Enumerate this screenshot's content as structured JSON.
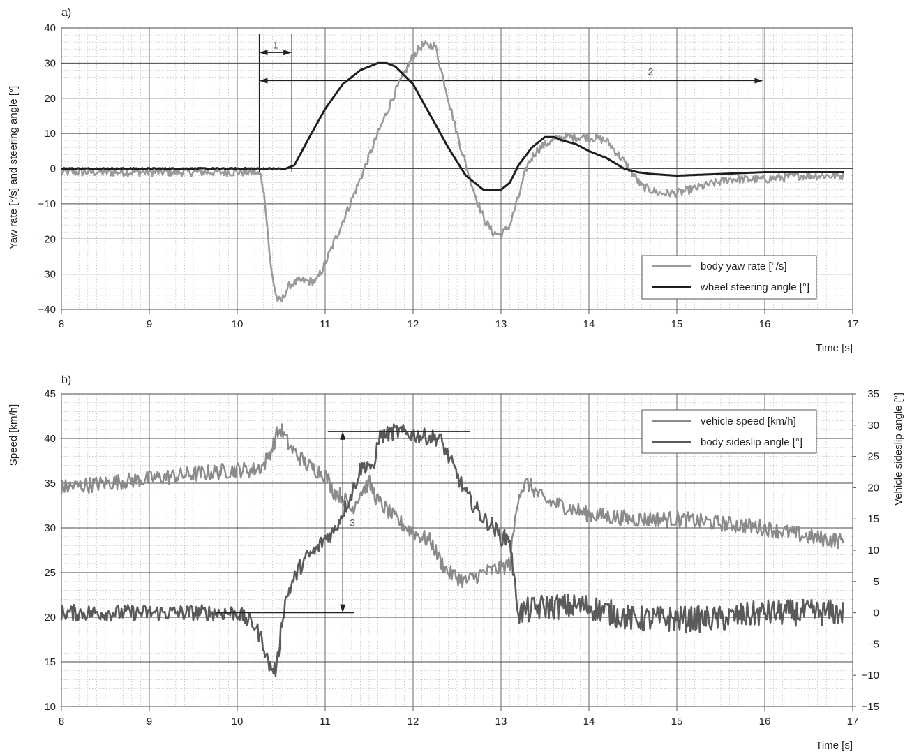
{
  "chart_data": [
    {
      "type": "line",
      "panel_label": "a)",
      "ylabel": "Yaw rate [°/s] and steering angle [°]",
      "xlabel": "Time [s]",
      "xlim": [
        8,
        17
      ],
      "ylim": [
        -40,
        40
      ],
      "x_ticks": [
        "8",
        "9",
        "10",
        "11",
        "12",
        "13",
        "14",
        "15",
        "16",
        "17"
      ],
      "y_ticks": [
        "40",
        "30",
        "20",
        "10",
        "0",
        "−10",
        "−20",
        "−30",
        "−40"
      ],
      "grid": true,
      "legend_position": "lower-right",
      "colors": {
        "body_yaw_rate": "#9a9a9a",
        "wheel_steering_angle": "#1e1e1e"
      },
      "series": [
        {
          "name": "body yaw rate [°/s]",
          "x": [
            8.0,
            8.5,
            9.0,
            9.5,
            10.0,
            10.2,
            10.27,
            10.32,
            10.38,
            10.45,
            10.5,
            10.55,
            10.6,
            10.7,
            10.8,
            10.9,
            11.0,
            11.2,
            11.4,
            11.6,
            11.8,
            12.0,
            12.1,
            12.2,
            12.25,
            12.3,
            12.4,
            12.5,
            12.6,
            12.7,
            12.8,
            12.9,
            13.0,
            13.1,
            13.2,
            13.3,
            13.4,
            13.5,
            13.6,
            13.7,
            13.8,
            14.0,
            14.2,
            14.4,
            14.6,
            14.8,
            15.0,
            15.3,
            15.6,
            16.0,
            16.4,
            16.9
          ],
          "values": [
            -1,
            -1,
            -1,
            -1,
            -1,
            -1,
            -2,
            -10,
            -28,
            -37,
            -38,
            -35,
            -33,
            -32,
            -32,
            -32,
            -27,
            -15,
            -3,
            10,
            22,
            32,
            35,
            35,
            35,
            30,
            20,
            10,
            1,
            -7,
            -14,
            -18,
            -19,
            -16,
            -8,
            1,
            5,
            7,
            8,
            9,
            9,
            9,
            8,
            2,
            -5,
            -7,
            -7,
            -5,
            -3,
            -3,
            -2,
            -2
          ]
        },
        {
          "name": "wheel steering angle [°]",
          "x": [
            8.0,
            9.0,
            10.0,
            10.3,
            10.55,
            10.65,
            10.8,
            11.0,
            11.2,
            11.4,
            11.6,
            11.7,
            11.8,
            12.0,
            12.2,
            12.4,
            12.6,
            12.8,
            12.9,
            13.0,
            13.1,
            13.2,
            13.35,
            13.5,
            13.6,
            13.7,
            13.85,
            14.0,
            14.2,
            14.4,
            14.55,
            14.7,
            15.0,
            15.5,
            16.0,
            16.9
          ],
          "values": [
            0,
            0,
            0,
            0,
            0,
            1,
            8,
            17,
            24,
            28,
            30,
            30,
            29,
            24,
            15,
            6,
            -2,
            -6,
            -6,
            -6,
            -4,
            1,
            6,
            9,
            9,
            8,
            7,
            5,
            3,
            0,
            -1,
            -1.5,
            -2,
            -1.5,
            -1,
            -1
          ]
        }
      ],
      "annotations": [
        {
          "label": "1",
          "x_start": 10.25,
          "x_end": 10.62,
          "y": 33
        },
        {
          "label": "2",
          "x_start": 10.25,
          "x_end": 15.98,
          "y": 25
        }
      ]
    },
    {
      "type": "line",
      "panel_label": "b)",
      "ylabel": "Speed [km/h]",
      "ylabel_right": "Vehicle sideslip angle [°]",
      "xlabel": "Time [s]",
      "xlim": [
        8,
        17
      ],
      "ylim": [
        10,
        45
      ],
      "ylim_right": [
        -15,
        35
      ],
      "x_ticks": [
        "8",
        "9",
        "10",
        "11",
        "12",
        "13",
        "14",
        "15",
        "16",
        "17"
      ],
      "y_ticks": [
        "45",
        "40",
        "35",
        "30",
        "25",
        "20",
        "15",
        "10"
      ],
      "y_ticks_right": [
        "35",
        "30",
        "25",
        "20",
        "15",
        "10",
        "5",
        "0",
        "−5",
        "−10",
        "−15"
      ],
      "grid": true,
      "legend_position": "top-right",
      "colors": {
        "vehicle_speed": "#8a8a8a",
        "body_sideslip_angle": "#5a5a5a"
      },
      "series": [
        {
          "name": "vehicle speed [km/h]",
          "axis": "left",
          "x": [
            8.0,
            8.5,
            9.0,
            9.5,
            10.0,
            10.2,
            10.3,
            10.4,
            10.45,
            10.5,
            10.6,
            10.8,
            11.0,
            11.1,
            11.2,
            11.3,
            11.4,
            11.5,
            11.6,
            11.7,
            11.8,
            12.0,
            12.2,
            12.3,
            12.4,
            12.6,
            12.8,
            13.0,
            13.1,
            13.2,
            13.3,
            13.5,
            13.7,
            14.0,
            14.5,
            15.0,
            15.5,
            16.0,
            16.5,
            16.9
          ],
          "values": [
            34.5,
            35,
            35.5,
            36,
            36.5,
            36.5,
            37,
            39,
            40.5,
            41,
            39,
            37,
            36,
            34,
            33.5,
            32,
            34,
            35,
            33,
            32,
            31,
            29.5,
            28.5,
            26.5,
            25,
            24,
            25,
            25.5,
            26,
            34,
            35,
            33,
            32.5,
            31.5,
            31,
            31,
            30.5,
            30,
            29,
            28.5
          ]
        },
        {
          "name": "body sideslip angle [°]",
          "axis": "right",
          "x": [
            8.0,
            8.5,
            9.0,
            9.5,
            10.0,
            10.1,
            10.2,
            10.3,
            10.35,
            10.4,
            10.45,
            10.5,
            10.55,
            10.6,
            10.7,
            10.8,
            10.9,
            11.0,
            11.1,
            11.2,
            11.3,
            11.4,
            11.5,
            11.55,
            11.6,
            11.8,
            12.0,
            12.2,
            12.3,
            12.4,
            12.5,
            12.6,
            12.7,
            12.8,
            12.9,
            13.0,
            13.1,
            13.15,
            13.2,
            13.5,
            14.0,
            14.5,
            15.0,
            15.5,
            16.0,
            16.5,
            16.9
          ],
          "values": [
            0,
            0,
            0,
            0,
            0,
            -1,
            -2,
            -5,
            -8,
            -9,
            -9,
            -2,
            2,
            4,
            7,
            9,
            10,
            12,
            13,
            16,
            19,
            23,
            24,
            22,
            28,
            29,
            28.5,
            28,
            28,
            25,
            22,
            19,
            17,
            15,
            14,
            12,
            12,
            5,
            0,
            1,
            1,
            -1,
            -1,
            -1,
            0,
            0,
            0
          ]
        }
      ],
      "annotations": [
        {
          "label": "3",
          "x": 11.2,
          "y_start": 0,
          "y_end": 29
        }
      ]
    }
  ],
  "legend_a": [
    "body yaw rate [°/s]",
    "wheel steering angle [°]"
  ],
  "legend_b": [
    "vehicle speed [km/h]",
    "body sideslip angle [°]"
  ]
}
